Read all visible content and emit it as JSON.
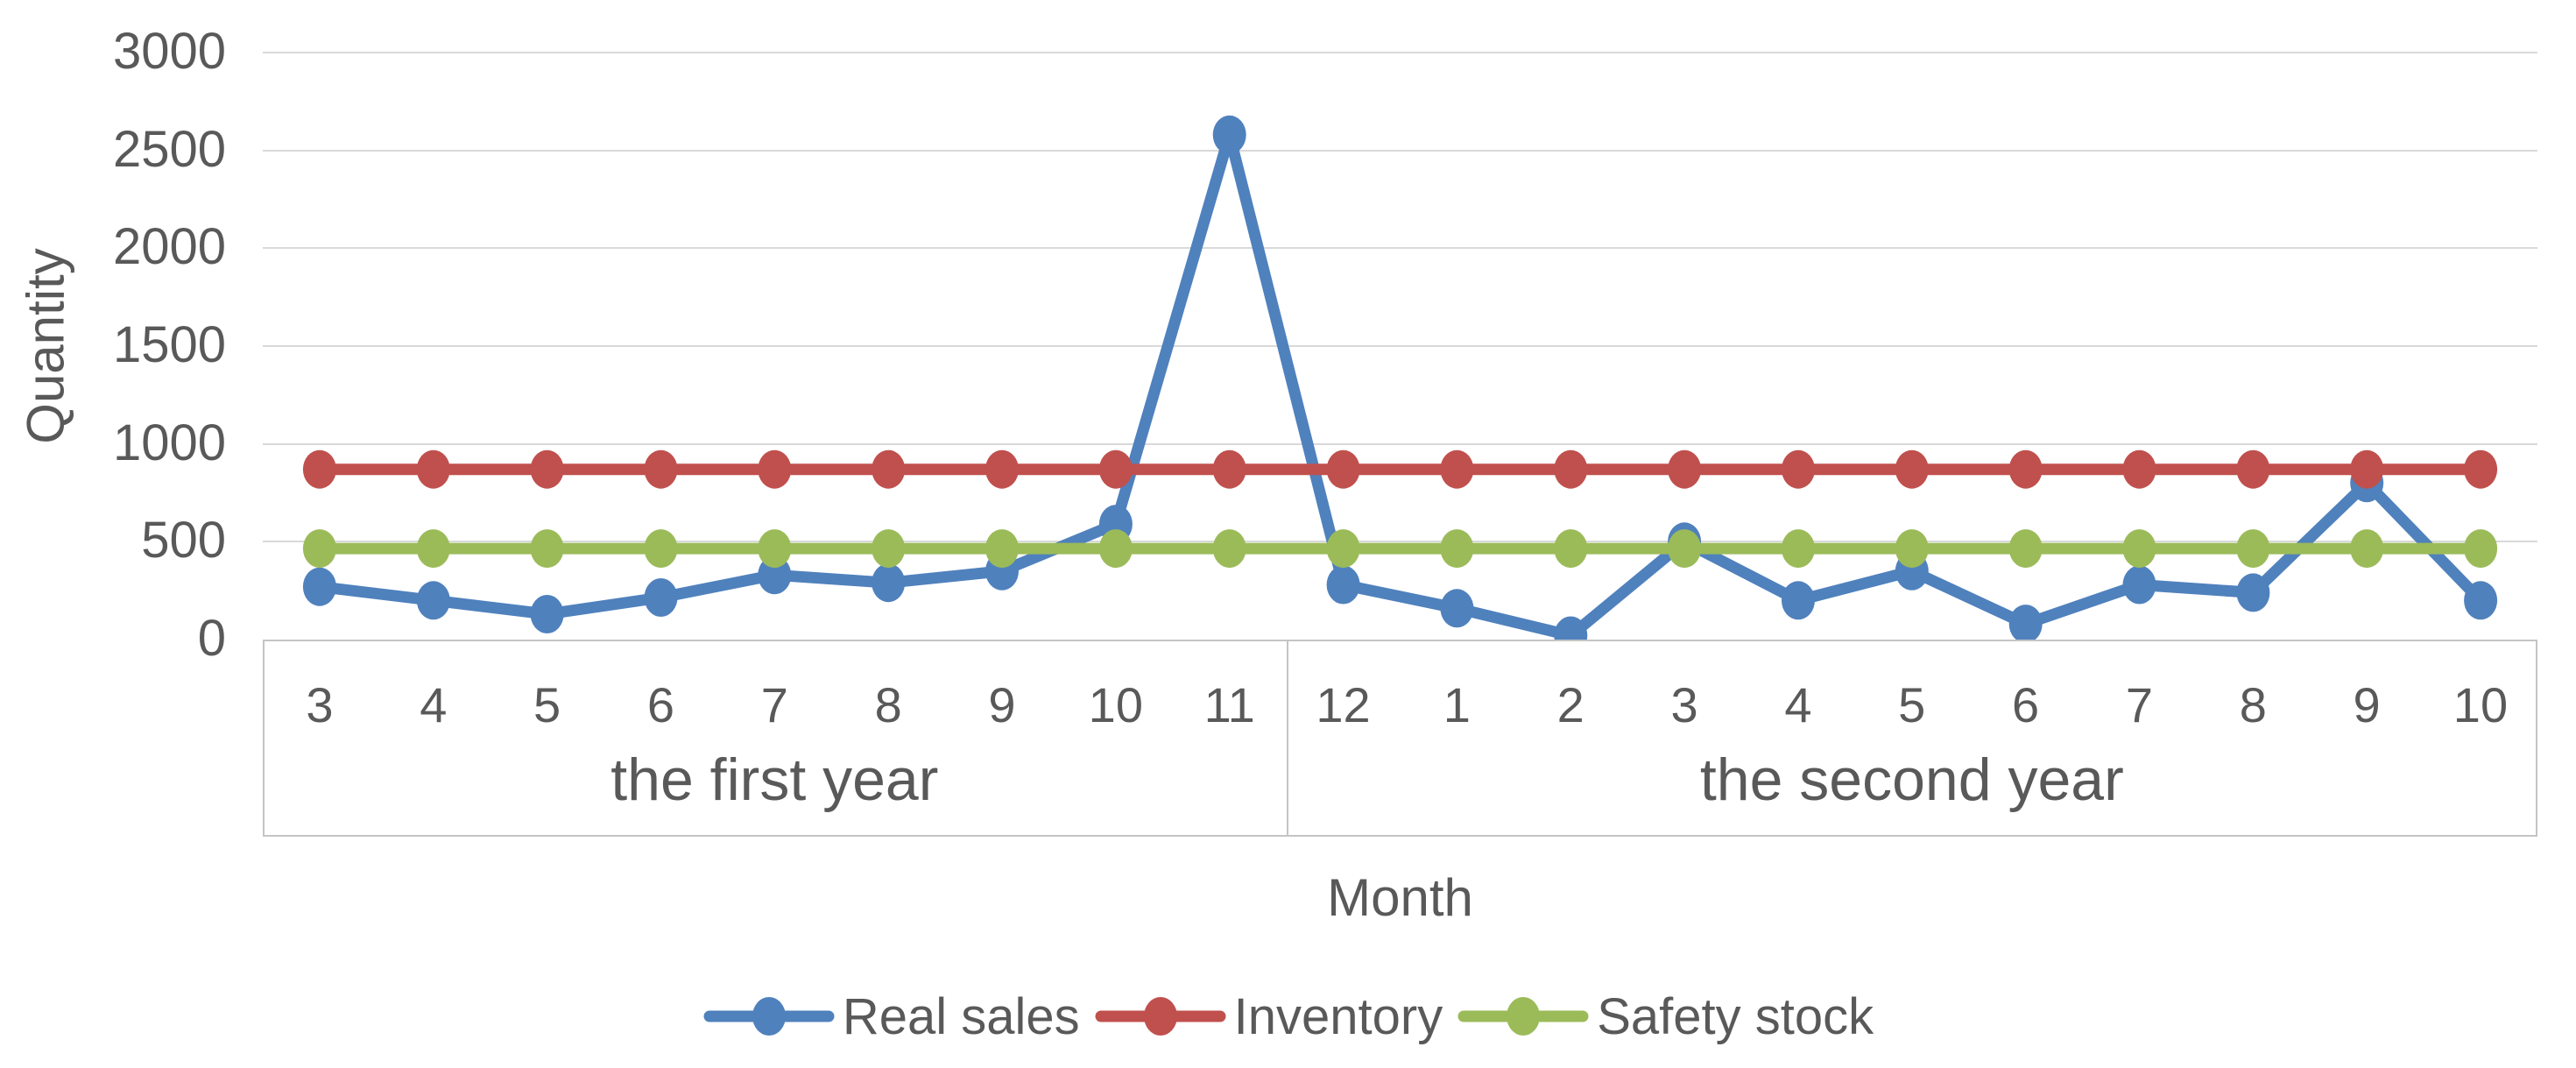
{
  "chart_data": {
    "type": "line",
    "title": "",
    "ylabel": "Quantity",
    "xlabel": "Month",
    "ylim": [
      0,
      3000
    ],
    "yticks": [
      0,
      500,
      1000,
      1500,
      2000,
      2500,
      3000
    ],
    "grid": true,
    "legend_position": "bottom",
    "text_color": "#595959",
    "gridline_color": "#d9d9d9",
    "band_border_color": "#c4c4c4",
    "x_groups": [
      {
        "label": "the first year",
        "months": [
          "3",
          "4",
          "5",
          "6",
          "7",
          "8",
          "9",
          "10",
          "11"
        ]
      },
      {
        "label": "the second year",
        "months": [
          "12",
          "1",
          "2",
          "3",
          "4",
          "5",
          "6",
          "7",
          "8",
          "9",
          "10"
        ]
      }
    ],
    "series": [
      {
        "name": "Real sales",
        "color": "#4F81BD",
        "values": [
          270,
          200,
          130,
          215,
          330,
          290,
          350,
          590,
          2580,
          280,
          160,
          20,
          500,
          200,
          350,
          80,
          280,
          240,
          800,
          200
        ]
      },
      {
        "name": "Inventory",
        "color": "#C0504D",
        "values": [
          870,
          870,
          870,
          870,
          870,
          870,
          870,
          870,
          870,
          870,
          870,
          870,
          870,
          870,
          870,
          870,
          870,
          870,
          870,
          870
        ]
      },
      {
        "name": "Safety stock",
        "color": "#9BBB59",
        "values": [
          465,
          465,
          465,
          465,
          465,
          465,
          465,
          465,
          465,
          465,
          465,
          465,
          465,
          465,
          465,
          465,
          465,
          465,
          465,
          465
        ]
      }
    ]
  }
}
